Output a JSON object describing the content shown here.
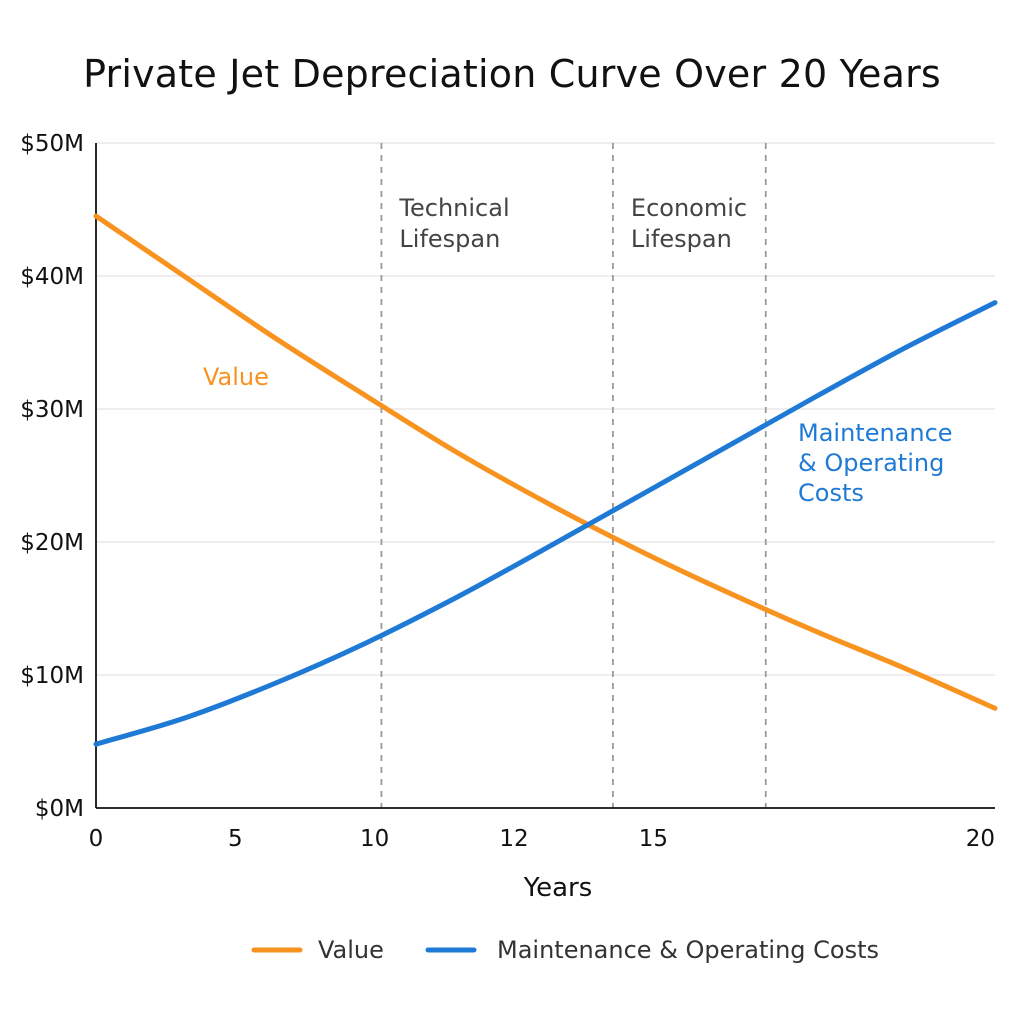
{
  "chart_data": {
    "type": "line",
    "title": "Private Jet Depreciation Curve Over 20 Years",
    "xlabel": "Years",
    "ylabel": "",
    "xlim": [
      0,
      20
    ],
    "ylim": [
      0,
      50
    ],
    "x_ticks": [
      {
        "value": 0,
        "label": "0"
      },
      {
        "value": 3.1,
        "label": "5"
      },
      {
        "value": 6.2,
        "label": "10"
      },
      {
        "value": 9.3,
        "label": "12"
      },
      {
        "value": 12.4,
        "label": "15"
      },
      {
        "value": 20,
        "label": "20"
      }
    ],
    "y_ticks": [
      {
        "value": 0,
        "label": "$0M"
      },
      {
        "value": 10,
        "label": "$10M"
      },
      {
        "value": 20,
        "label": "$20M"
      },
      {
        "value": 30,
        "label": "$30M"
      },
      {
        "value": 40,
        "label": "$40M"
      },
      {
        "value": 50,
        "label": "$50M"
      }
    ],
    "grid": "horizontal",
    "phase_markers": [
      {
        "x": 6.35,
        "lines": [
          "Technical",
          "Lifespan"
        ]
      },
      {
        "x": 11.5,
        "lines": [
          "Economic",
          "Lifespan"
        ]
      },
      {
        "x": 14.9,
        "lines": []
      }
    ],
    "series": [
      {
        "name": "Value",
        "color": "#F7931E",
        "label_lines": [
          "Value"
        ],
        "x": [
          0,
          2,
          4,
          6,
          8,
          10,
          12,
          14,
          16,
          18,
          20
        ],
        "y": [
          44.5,
          39.9,
          35.3,
          31.0,
          26.8,
          23.0,
          19.5,
          16.3,
          13.3,
          10.5,
          7.5
        ]
      },
      {
        "name": "Maintenance & Operating Costs",
        "color": "#1F7AD6",
        "label_lines": [
          "Maintenance",
          "& Operating",
          "Costs"
        ],
        "x": [
          0,
          2,
          4,
          6,
          8,
          10,
          12,
          14,
          16,
          18,
          20
        ],
        "y": [
          4.8,
          6.8,
          9.4,
          12.4,
          15.8,
          19.5,
          23.3,
          27.1,
          30.9,
          34.6,
          38.0
        ]
      }
    ],
    "legend": {
      "position": "bottom",
      "entries": [
        "Value",
        "Maintenance & Operating Costs"
      ]
    }
  }
}
